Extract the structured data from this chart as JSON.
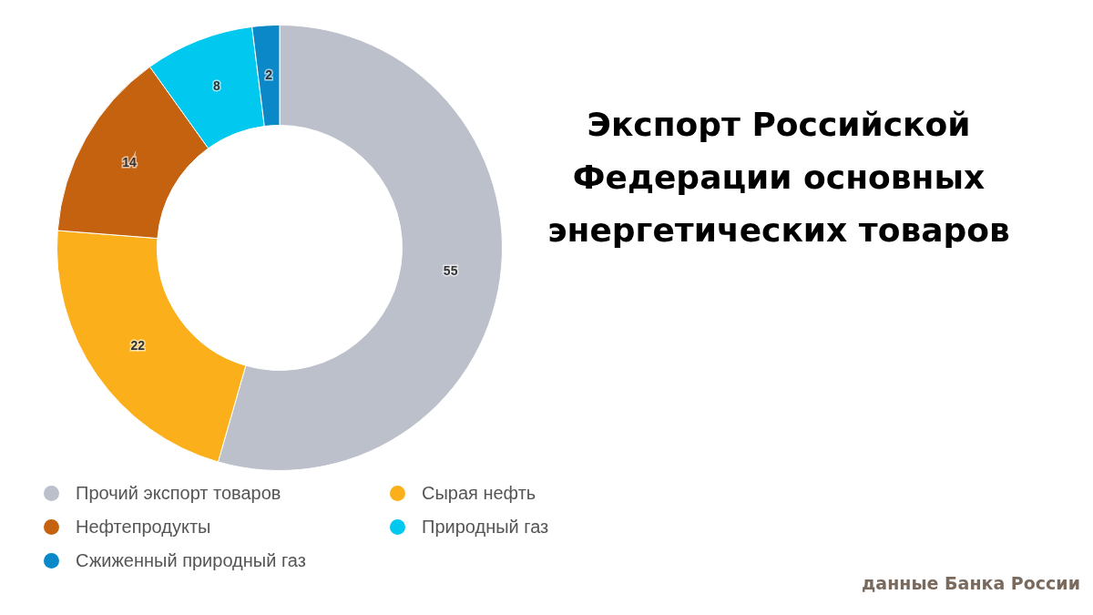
{
  "chart_data": {
    "type": "donut",
    "title": "Экспорт Российской Федерации основных энергетических товаров",
    "categories": [
      "Прочий экспорт товаров",
      "Сырая нефть",
      "Нефтепродукты",
      "Природный газ",
      "Сжиженный природный газ"
    ],
    "values": [
      55,
      22,
      14,
      8,
      2
    ],
    "colors": [
      "#bcc0cb",
      "#fbb01b",
      "#c4620f",
      "#00c8ef",
      "#0a88c8"
    ],
    "data_labels": true,
    "legend": "bottom",
    "annotations": [
      "данные Банка России"
    ]
  }
}
